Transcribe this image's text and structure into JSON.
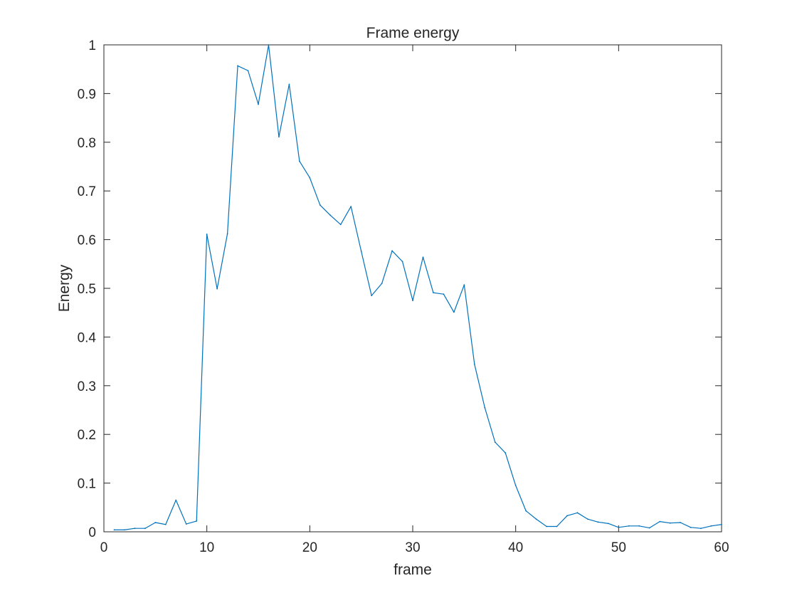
{
  "chart_data": {
    "type": "line",
    "title": "Frame energy",
    "xlabel": "frame",
    "ylabel": "Energy",
    "xlim": [
      0,
      60
    ],
    "ylim": [
      0,
      1
    ],
    "grid": false,
    "line_color": "#0072BD",
    "axis_color": "#262626",
    "x_ticks": [
      0,
      10,
      20,
      30,
      40,
      50,
      60
    ],
    "x_tick_labels": [
      "0",
      "10",
      "20",
      "30",
      "40",
      "50",
      "60"
    ],
    "y_ticks": [
      0,
      0.1,
      0.2,
      0.3,
      0.4,
      0.5,
      0.6,
      0.7,
      0.8,
      0.9,
      1
    ],
    "y_tick_labels": [
      "0",
      "0.1",
      "0.2",
      "0.3",
      "0.4",
      "0.5",
      "0.6",
      "0.7",
      "0.8",
      "0.9",
      "1"
    ],
    "series": [
      {
        "name": "energy",
        "x": [
          1,
          2,
          3,
          4,
          5,
          6,
          7,
          8,
          9,
          10,
          11,
          12,
          13,
          14,
          15,
          16,
          17,
          18,
          19,
          20,
          21,
          22,
          23,
          24,
          25,
          26,
          27,
          28,
          29,
          30,
          31,
          32,
          33,
          34,
          35,
          36,
          37,
          38,
          39,
          40,
          41,
          42,
          43,
          44,
          45,
          46,
          47,
          48,
          49,
          50,
          51,
          52,
          53,
          54,
          55,
          56,
          57,
          58,
          59,
          60
        ],
        "y": [
          0.004,
          0.004,
          0.007,
          0.007,
          0.019,
          0.015,
          0.065,
          0.016,
          0.022,
          0.611,
          0.499,
          0.612,
          0.957,
          0.947,
          0.878,
          1.0,
          0.811,
          0.919,
          0.761,
          0.727,
          0.671,
          0.65,
          0.631,
          0.668,
          0.576,
          0.485,
          0.51,
          0.577,
          0.555,
          0.475,
          0.564,
          0.491,
          0.488,
          0.451,
          0.507,
          0.344,
          0.255,
          0.184,
          0.162,
          0.095,
          0.043,
          0.026,
          0.011,
          0.011,
          0.033,
          0.039,
          0.026,
          0.02,
          0.017,
          0.009,
          0.012,
          0.012,
          0.008,
          0.021,
          0.018,
          0.019,
          0.009,
          0.007,
          0.012,
          0.015
        ]
      }
    ]
  }
}
